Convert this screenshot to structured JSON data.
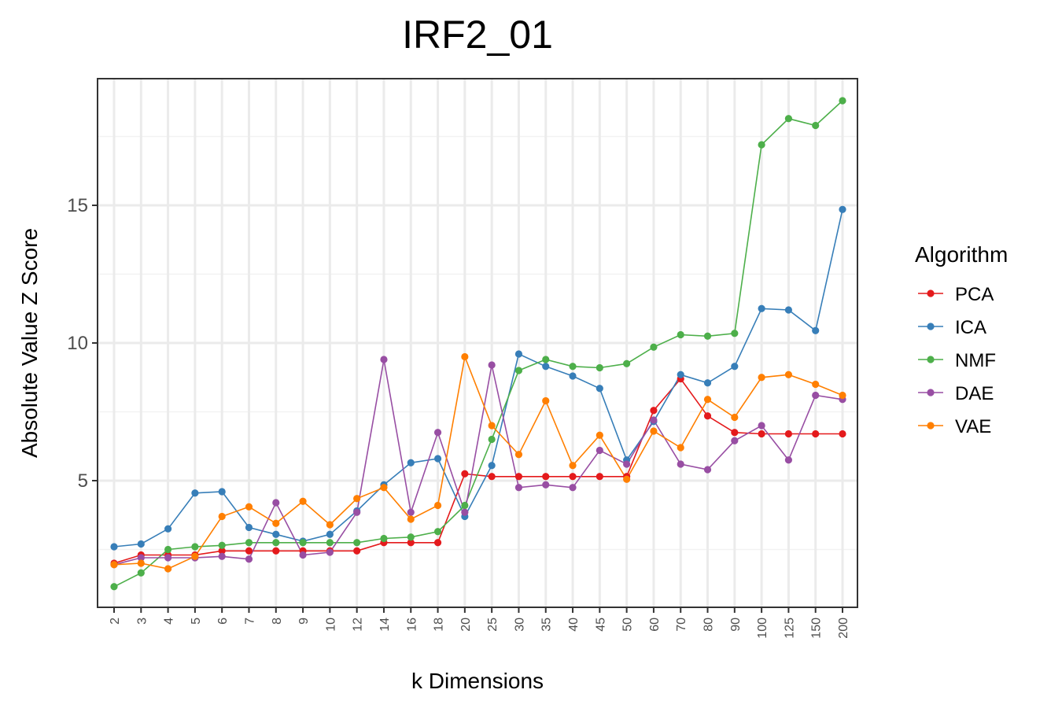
{
  "chart_data": {
    "type": "line",
    "title": "IRF2_01",
    "xlabel": "k Dimensions",
    "ylabel": "Absolute Value Z Score",
    "categories": [
      "2",
      "3",
      "4",
      "5",
      "6",
      "7",
      "8",
      "9",
      "10",
      "12",
      "14",
      "16",
      "18",
      "20",
      "25",
      "30",
      "35",
      "40",
      "45",
      "50",
      "60",
      "70",
      "80",
      "90",
      "100",
      "125",
      "150",
      "200"
    ],
    "yticks": [
      5,
      10,
      15
    ],
    "ylim": [
      0.4,
      19.6
    ],
    "grid": true,
    "legend": {
      "title": "Algorithm",
      "position": "right"
    },
    "series": [
      {
        "name": "PCA",
        "color": "#e41a1c",
        "values": [
          2.0,
          2.3,
          2.3,
          2.3,
          2.45,
          2.45,
          2.45,
          2.45,
          2.45,
          2.45,
          2.75,
          2.75,
          2.75,
          5.25,
          5.15,
          5.15,
          5.15,
          5.15,
          5.15,
          5.15,
          7.55,
          8.7,
          7.35,
          6.75,
          6.7,
          6.7,
          6.7,
          6.7
        ]
      },
      {
        "name": "ICA",
        "color": "#377eb8",
        "values": [
          2.6,
          2.7,
          3.25,
          4.55,
          4.6,
          3.3,
          3.05,
          2.8,
          3.05,
          3.9,
          4.85,
          5.65,
          5.8,
          3.7,
          5.55,
          9.6,
          9.15,
          8.8,
          8.35,
          5.75,
          7.15,
          8.85,
          8.55,
          9.15,
          11.25,
          11.2,
          10.45,
          14.85
        ]
      },
      {
        "name": "NMF",
        "color": "#4daf4a",
        "values": [
          1.15,
          1.65,
          2.5,
          2.6,
          2.65,
          2.75,
          2.75,
          2.75,
          2.75,
          2.75,
          2.9,
          2.95,
          3.15,
          4.1,
          6.5,
          9.0,
          9.4,
          9.15,
          9.1,
          9.25,
          9.85,
          10.3,
          10.25,
          10.35,
          17.2,
          18.15,
          17.9,
          18.8
        ]
      },
      {
        "name": "DAE",
        "color": "#984ea3",
        "values": [
          1.95,
          2.2,
          2.2,
          2.2,
          2.25,
          2.15,
          4.2,
          2.3,
          2.4,
          3.85,
          9.4,
          3.85,
          6.75,
          3.85,
          9.2,
          4.75,
          4.85,
          4.75,
          6.1,
          5.6,
          7.2,
          5.6,
          5.4,
          6.45,
          7.0,
          5.75,
          8.1,
          7.95
        ]
      },
      {
        "name": "VAE",
        "color": "#ff7f00",
        "values": [
          1.95,
          2.0,
          1.8,
          2.25,
          3.7,
          4.05,
          3.45,
          4.25,
          3.4,
          4.35,
          4.75,
          3.6,
          4.1,
          9.5,
          7.0,
          5.95,
          7.9,
          5.55,
          6.65,
          5.05,
          6.8,
          6.2,
          7.95,
          7.3,
          8.75,
          8.85,
          8.5,
          8.1
        ]
      }
    ]
  }
}
